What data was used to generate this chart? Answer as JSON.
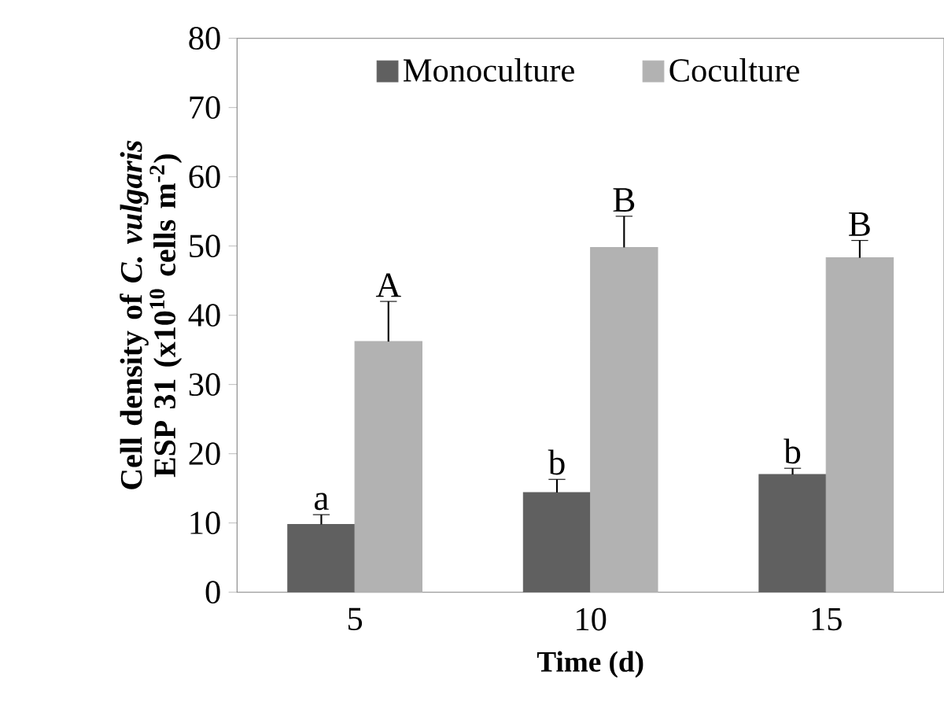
{
  "chart_data": {
    "type": "bar",
    "xlabel": "Time (d)",
    "ylabel": "Cell density of *C. vulgaris* ESP 31 (x10$^{10}$ cells m$^{-2}$)",
    "categories": [
      "5",
      "10",
      "15"
    ],
    "series": [
      {
        "name": "Monoculture",
        "color": "#606060",
        "values": [
          9.8,
          14.4,
          17.0
        ],
        "errors": [
          1.4,
          1.9,
          0.9
        ]
      },
      {
        "name": "Coculture",
        "color": "#b2b2b2",
        "values": [
          36.2,
          49.8,
          48.3
        ],
        "errors": [
          5.8,
          4.5,
          2.5
        ]
      }
    ],
    "ylim": [
      0,
      80
    ],
    "yticks": [
      0,
      10,
      20,
      30,
      40,
      50,
      60,
      70,
      80
    ],
    "legend": "top",
    "grid": false,
    "annotations": [
      {
        "text": "a",
        "x": "5",
        "y": 9.8
      },
      {
        "text": "b",
        "x": "10",
        "y": 14.4
      },
      {
        "text": "b",
        "x": "15",
        "y": 17.0
      },
      {
        "text": "A",
        "x": "5",
        "y": 36.2
      },
      {
        "text": "B",
        "x": "10",
        "y": 49.8
      },
      {
        "text": "B",
        "x": "15",
        "y": 48.3
      }
    ]
  }
}
